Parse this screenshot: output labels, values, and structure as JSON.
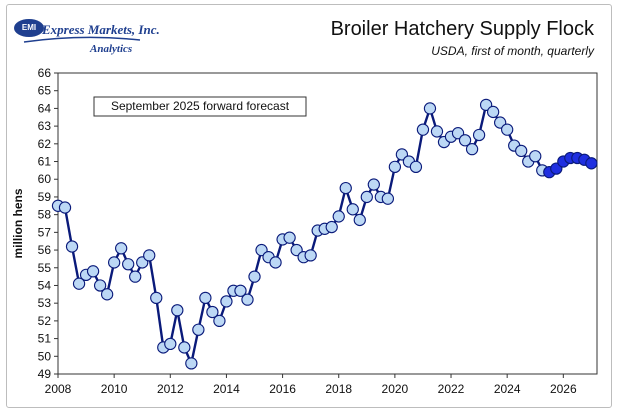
{
  "logo": {
    "badge": "EMI",
    "company": "Express Markets, Inc.",
    "division": "Analytics"
  },
  "chart_data": {
    "type": "line",
    "title": "Broiler Hatchery Supply Flock",
    "subtitle": "USDA, first of month, quarterly",
    "xlabel": "",
    "ylabel": "million hens",
    "annotation": "September 2025 forward forecast",
    "xlim": [
      2008,
      2027.2
    ],
    "ylim": [
      49,
      66
    ],
    "x_ticks": [
      2008,
      2010,
      2012,
      2014,
      2016,
      2018,
      2020,
      2022,
      2024,
      2026
    ],
    "y_ticks": [
      49,
      50,
      51,
      52,
      53,
      54,
      55,
      56,
      57,
      58,
      59,
      60,
      61,
      62,
      63,
      64,
      65,
      66
    ],
    "grid": false,
    "line_color": "#0a1a7a",
    "series": [
      {
        "kind": "actual",
        "marker_color": "#bcd8f5",
        "x": [
          2008.0,
          2008.25,
          2008.5,
          2008.75,
          2009.0,
          2009.25,
          2009.5,
          2009.75,
          2010.0,
          2010.25,
          2010.5,
          2010.75,
          2011.0,
          2011.25,
          2011.5,
          2011.75,
          2012.0,
          2012.25,
          2012.5,
          2012.75,
          2013.0,
          2013.25,
          2013.5,
          2013.75,
          2014.0,
          2014.25,
          2014.5,
          2014.75,
          2015.0,
          2015.25,
          2015.5,
          2015.75,
          2016.0,
          2016.25,
          2016.5,
          2016.75,
          2017.0,
          2017.25,
          2017.5,
          2017.75,
          2018.0,
          2018.25,
          2018.5,
          2018.75,
          2019.0,
          2019.25,
          2019.5,
          2019.75,
          2020.0,
          2020.25,
          2020.5,
          2020.75,
          2021.0,
          2021.25,
          2021.5,
          2021.75,
          2022.0,
          2022.25,
          2022.5,
          2022.75,
          2023.0,
          2023.25,
          2023.5,
          2023.75,
          2024.0,
          2024.25,
          2024.5,
          2024.75,
          2025.0,
          2025.25
        ],
        "y": [
          58.5,
          58.4,
          56.2,
          54.1,
          54.6,
          54.8,
          54.0,
          53.5,
          55.3,
          56.1,
          55.2,
          54.5,
          55.3,
          55.7,
          53.3,
          50.5,
          50.7,
          52.6,
          50.5,
          49.6,
          51.5,
          53.3,
          52.5,
          52.0,
          53.1,
          53.7,
          53.7,
          53.2,
          54.5,
          56.0,
          55.6,
          55.3,
          56.6,
          56.7,
          56.0,
          55.6,
          55.7,
          57.1,
          57.2,
          57.3,
          57.9,
          59.5,
          58.3,
          57.7,
          59.0,
          59.7,
          59.0,
          58.9,
          60.7,
          61.4,
          61.0,
          60.7,
          62.8,
          64.0,
          62.7,
          62.1,
          62.4,
          62.6,
          62.2,
          61.7,
          62.5,
          64.2,
          63.8,
          63.2,
          62.8,
          61.9,
          61.6,
          61.0,
          61.3,
          60.5
        ]
      },
      {
        "kind": "forecast",
        "marker_color": "#1f2fe0",
        "x": [
          2025.5,
          2025.75,
          2026.0,
          2026.25,
          2026.5,
          2026.75,
          2027.0
        ],
        "y": [
          60.4,
          60.6,
          61.0,
          61.2,
          61.2,
          61.1,
          60.9
        ]
      }
    ]
  }
}
